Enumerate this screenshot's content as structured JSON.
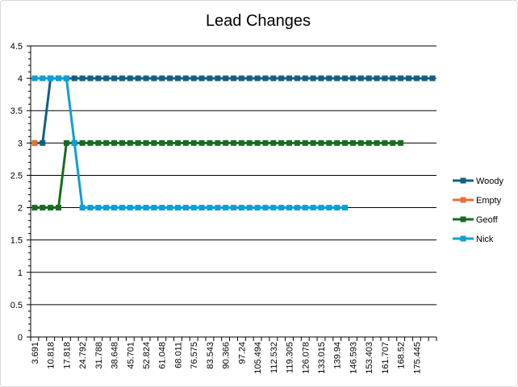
{
  "chart_data": {
    "type": "line",
    "title": "Lead Changes",
    "x_tick_labels": [
      "3.691",
      "10.818",
      "17.818",
      "24.792",
      "31.788",
      "38.648",
      "45.701",
      "52.824",
      "61.048",
      "68.011",
      "76.575",
      "83.543",
      "90.366",
      "97.24",
      "105.494",
      "112.532",
      "119.305",
      "126.078",
      "133.015",
      "139.94",
      "146.593",
      "153.403",
      "161.707",
      "168.52",
      "175.445"
    ],
    "ylim": [
      0,
      4.5
    ],
    "y_ticks": [
      "0",
      "0.5",
      "1",
      "1.5",
      "2",
      "2.5",
      "3",
      "3.5",
      "4",
      "4.5"
    ],
    "grid": true,
    "legend_position": "right",
    "series": [
      {
        "name": "Woody",
        "color": "#156082",
        "values": [
          3,
          3,
          4,
          4,
          4,
          4,
          4,
          4,
          4,
          4,
          4,
          4,
          4,
          4,
          4,
          4,
          4,
          4,
          4,
          4,
          4,
          4,
          4,
          4,
          4,
          4,
          4,
          4,
          4,
          4,
          4,
          4,
          4,
          4,
          4,
          4,
          4,
          4,
          4,
          4,
          4,
          4,
          4,
          4,
          4,
          4,
          4,
          4,
          4,
          4,
          4
        ]
      },
      {
        "name": "Empty",
        "color": "#E97132",
        "values": [
          3
        ]
      },
      {
        "name": "Geoff",
        "color": "#196B24",
        "values": [
          2,
          2,
          2,
          2,
          3,
          3,
          3,
          3,
          3,
          3,
          3,
          3,
          3,
          3,
          3,
          3,
          3,
          3,
          3,
          3,
          3,
          3,
          3,
          3,
          3,
          3,
          3,
          3,
          3,
          3,
          3,
          3,
          3,
          3,
          3,
          3,
          3,
          3,
          3,
          3,
          3,
          3,
          3,
          3,
          3,
          3,
          3
        ]
      },
      {
        "name": "Nick",
        "color": "#0F9ED5",
        "values": [
          4,
          4,
          4,
          4,
          4,
          3,
          2,
          2,
          2,
          2,
          2,
          2,
          2,
          2,
          2,
          2,
          2,
          2,
          2,
          2,
          2,
          2,
          2,
          2,
          2,
          2,
          2,
          2,
          2,
          2,
          2,
          2,
          2,
          2,
          2,
          2,
          2,
          2,
          2,
          2
        ]
      }
    ]
  }
}
